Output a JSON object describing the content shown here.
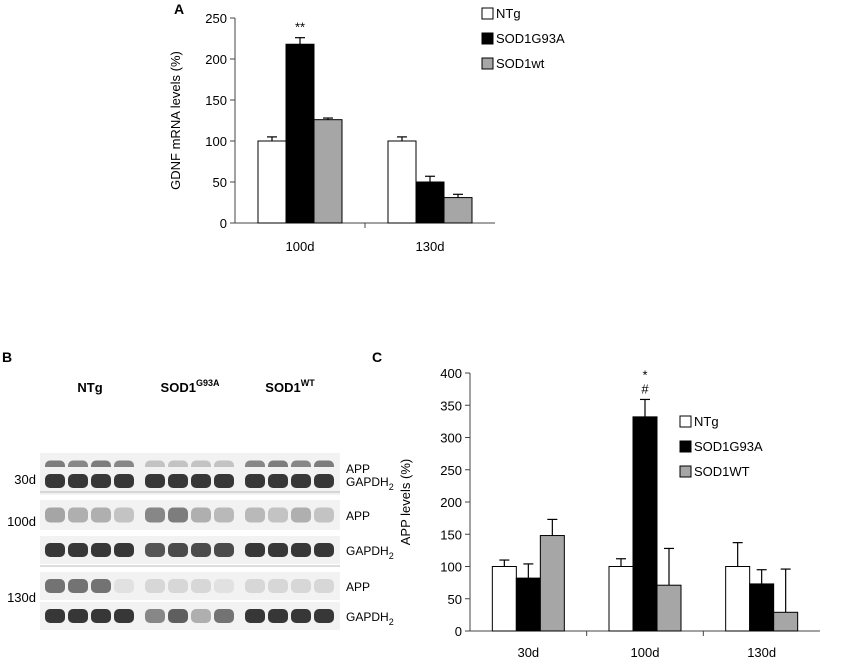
{
  "panels": {
    "a": "A",
    "b": "B",
    "c": "C"
  },
  "colors": {
    "NTg": "#ffffff",
    "SOD1G93A": "#000000",
    "SOD1wt": "#a6a6a6"
  },
  "chart_data": [
    {
      "panel": "A",
      "type": "bar",
      "ylabel": "GDNF  mRNA  levels (%)",
      "xlabel": "",
      "ylim": [
        0,
        250
      ],
      "yticks": [
        0,
        50,
        100,
        150,
        200,
        250
      ],
      "categories": [
        "100d",
        "130d"
      ],
      "series": [
        {
          "name": "NTg",
          "values": [
            100,
            100
          ],
          "errors": [
            5,
            5
          ]
        },
        {
          "name": "SOD1G93A",
          "values": [
            218,
            50
          ],
          "errors": [
            8,
            7
          ]
        },
        {
          "name": "SOD1wt",
          "values": [
            126,
            31
          ],
          "errors": [
            2,
            4
          ]
        }
      ],
      "annotations": [
        {
          "category": "100d",
          "series": "SOD1G93A",
          "text": "**"
        }
      ],
      "legend": "top-right",
      "grid": false
    },
    {
      "panel": "C",
      "type": "bar",
      "ylabel": "APP levels (%)",
      "xlabel": "",
      "ylim": [
        0,
        400
      ],
      "yticks": [
        0,
        50,
        100,
        150,
        200,
        250,
        300,
        350,
        400
      ],
      "categories": [
        "30d",
        "100d",
        "130d"
      ],
      "series": [
        {
          "name": "NTg",
          "values": [
            100,
            100,
            100
          ],
          "errors": [
            10,
            12,
            37
          ]
        },
        {
          "name": "SOD1G93A",
          "values": [
            82,
            332,
            73
          ],
          "errors": [
            22,
            27,
            22
          ]
        },
        {
          "name": "SOD1WT",
          "values": [
            148,
            71,
            29
          ],
          "errors": [
            25,
            57,
            67
          ]
        }
      ],
      "annotations": [
        {
          "category": "100d",
          "series": "SOD1G93A",
          "text": "*"
        },
        {
          "category": "100d",
          "series": "SOD1G93A",
          "text": "#"
        }
      ],
      "legend": "right",
      "grid": false
    }
  ],
  "blot": {
    "groups": [
      {
        "label": "NTg",
        "sup": ""
      },
      {
        "label": "SOD1",
        "sup": "G93A"
      },
      {
        "label": "SOD1",
        "sup": "WT"
      }
    ],
    "rows": [
      {
        "timepoint": "30d",
        "protein": "APP",
        "pattern": [
          [
            0.55,
            0.5,
            0.55,
            0.5
          ],
          [
            0.2,
            0.2,
            0.2,
            0.2
          ],
          [
            0.5,
            0.55,
            0.5,
            0.55
          ]
        ]
      },
      {
        "timepoint": "",
        "protein": "GAPDH",
        "sub": "2",
        "pattern": [
          [
            0.9,
            0.9,
            0.9,
            0.9
          ],
          [
            0.9,
            0.9,
            0.9,
            0.9
          ],
          [
            0.9,
            0.9,
            0.9,
            0.9
          ]
        ]
      },
      {
        "timepoint": "100d",
        "protein": "APP",
        "pattern": [
          [
            0.35,
            0.3,
            0.3,
            0.2
          ],
          [
            0.5,
            0.55,
            0.3,
            0.25
          ],
          [
            0.25,
            0.2,
            0.3,
            0.2
          ]
        ]
      },
      {
        "timepoint": "",
        "protein": "GAPDH",
        "sub": "2",
        "pattern": [
          [
            0.9,
            0.9,
            0.9,
            0.9
          ],
          [
            0.75,
            0.8,
            0.8,
            0.8
          ],
          [
            0.9,
            0.9,
            0.9,
            0.9
          ]
        ]
      },
      {
        "timepoint": "130d",
        "protein": "APP",
        "pattern": [
          [
            0.6,
            0.6,
            0.6,
            0.05
          ],
          [
            0.1,
            0.1,
            0.1,
            0.05
          ],
          [
            0.1,
            0.1,
            0.1,
            0.1
          ]
        ]
      },
      {
        "timepoint": "",
        "protein": "GAPDH",
        "sub": "2",
        "pattern": [
          [
            0.9,
            0.9,
            0.9,
            0.9
          ],
          [
            0.5,
            0.7,
            0.3,
            0.6
          ],
          [
            0.9,
            0.9,
            0.9,
            0.9
          ]
        ]
      }
    ]
  }
}
